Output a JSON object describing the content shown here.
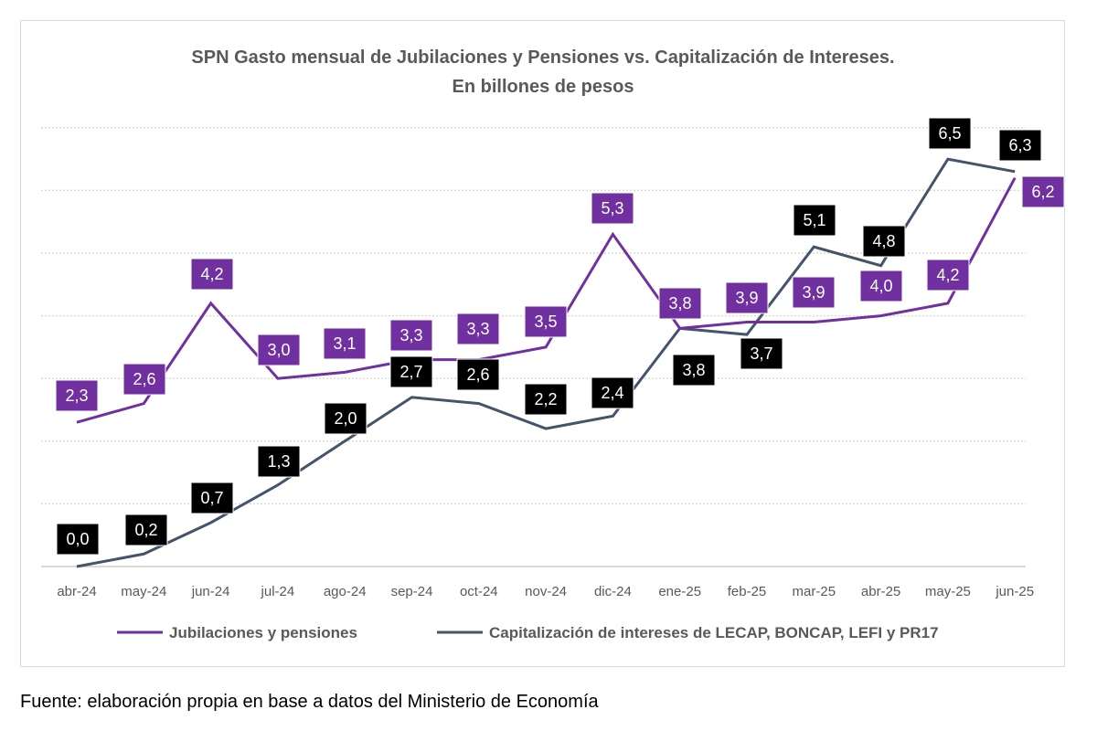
{
  "chart_data": {
    "type": "line",
    "title": "SPN Gasto mensual de Jubilaciones y Pensiones vs. Capitalización de Intereses.",
    "subtitle": "En billones de pesos",
    "categories": [
      "abr-24",
      "may-24",
      "jun-24",
      "jul-24",
      "ago-24",
      "sep-24",
      "oct-24",
      "nov-24",
      "dic-24",
      "ene-25",
      "feb-25",
      "mar-25",
      "abr-25",
      "may-25",
      "jun-25"
    ],
    "series": [
      {
        "name": "Jubilaciones y pensiones",
        "color": "#7030A0",
        "values": [
          2.3,
          2.6,
          4.2,
          3.0,
          3.1,
          3.3,
          3.3,
          3.5,
          5.3,
          3.8,
          3.9,
          3.9,
          4.0,
          4.2,
          6.2
        ],
        "labels": [
          "2,3",
          "2,6",
          "4,2",
          "3,0",
          "3,1",
          "3,3",
          "3,3",
          "3,5",
          "5,3",
          "3,8",
          "3,9",
          "3,9",
          "4,0",
          "4,2",
          "6,2"
        ]
      },
      {
        "name": "Capitalización de intereses de LECAP, BONCAP, LEFI y PR17",
        "color": "#44546A",
        "label_bg": "#000000",
        "values": [
          0.0,
          0.2,
          0.7,
          1.3,
          2.0,
          2.7,
          2.6,
          2.2,
          2.4,
          3.8,
          3.7,
          5.1,
          4.8,
          6.5,
          6.3
        ],
        "labels": [
          "0,0",
          "0,2",
          "0,7",
          "1,3",
          "2,0",
          "2,7",
          "2,6",
          "2,2",
          "2,4",
          "3,8",
          "3,7",
          "5,1",
          "4,8",
          "6,5",
          "6,3"
        ]
      }
    ],
    "ylim": [
      0,
      7
    ],
    "grid": true,
    "y_axis_labels_shown": false,
    "legend_placement": "bottom"
  },
  "source": "Fuente: elaboración propia en base a datos del Ministerio de Economía"
}
